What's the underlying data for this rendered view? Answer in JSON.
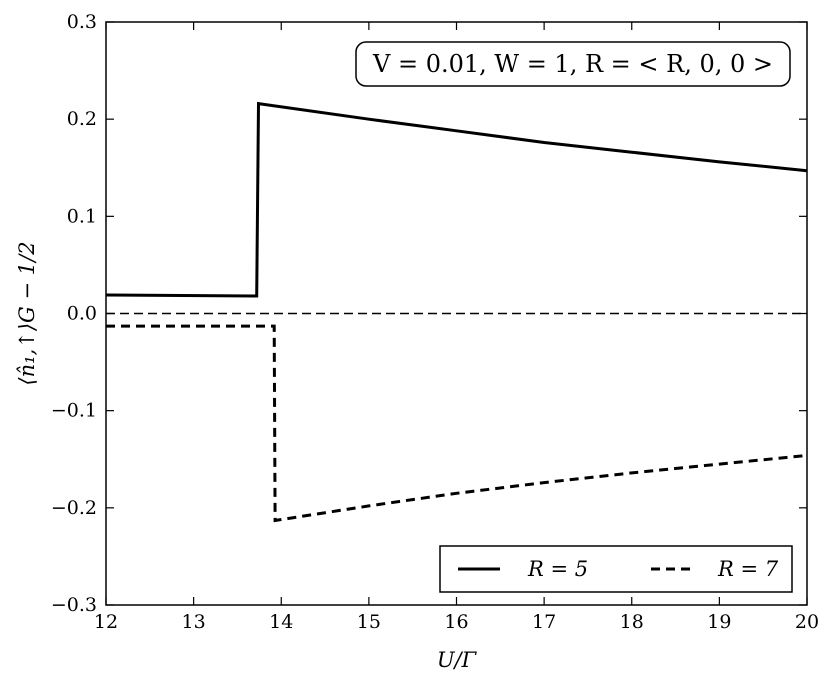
{
  "chart_data": {
    "type": "line",
    "xlabel": "U/Γ",
    "ylabel": "⟨n̂₁,↑⟩G − 1/2",
    "xlim": [
      12,
      20
    ],
    "ylim": [
      -0.3,
      0.3
    ],
    "x_ticks": [
      12,
      13,
      14,
      15,
      16,
      17,
      18,
      19,
      20
    ],
    "y_ticks": [
      -0.3,
      -0.2,
      -0.1,
      0.0,
      0.1,
      0.2,
      0.3
    ],
    "x_tick_labels": [
      "12",
      "13",
      "14",
      "15",
      "16",
      "17",
      "18",
      "19",
      "20"
    ],
    "y_tick_labels": [
      "−0.3",
      "−0.2",
      "−0.1",
      "0.0",
      "0.1",
      "0.2",
      "0.3"
    ],
    "annotation": "V = 0.01, W = 1, R = < R, 0, 0 >",
    "legend_position": "lower-right",
    "grid": false,
    "reference_line": {
      "y": 0.0,
      "style": "dashed"
    },
    "series": [
      {
        "name": "R = 5",
        "style": "solid",
        "color": "#000000",
        "x": [
          12.0,
          13.72,
          13.74,
          15.0,
          16.0,
          17.0,
          18.0,
          19.0,
          20.0
        ],
        "y": [
          0.019,
          0.018,
          0.216,
          0.2,
          0.188,
          0.176,
          0.166,
          0.156,
          0.147
        ]
      },
      {
        "name": "R = 7",
        "style": "dashed",
        "color": "#000000",
        "x": [
          12.0,
          13.92,
          13.93,
          15.0,
          16.0,
          17.0,
          18.0,
          19.0,
          20.0
        ],
        "y": [
          -0.013,
          -0.013,
          -0.213,
          -0.198,
          -0.185,
          -0.174,
          -0.164,
          -0.155,
          -0.146
        ]
      }
    ]
  }
}
